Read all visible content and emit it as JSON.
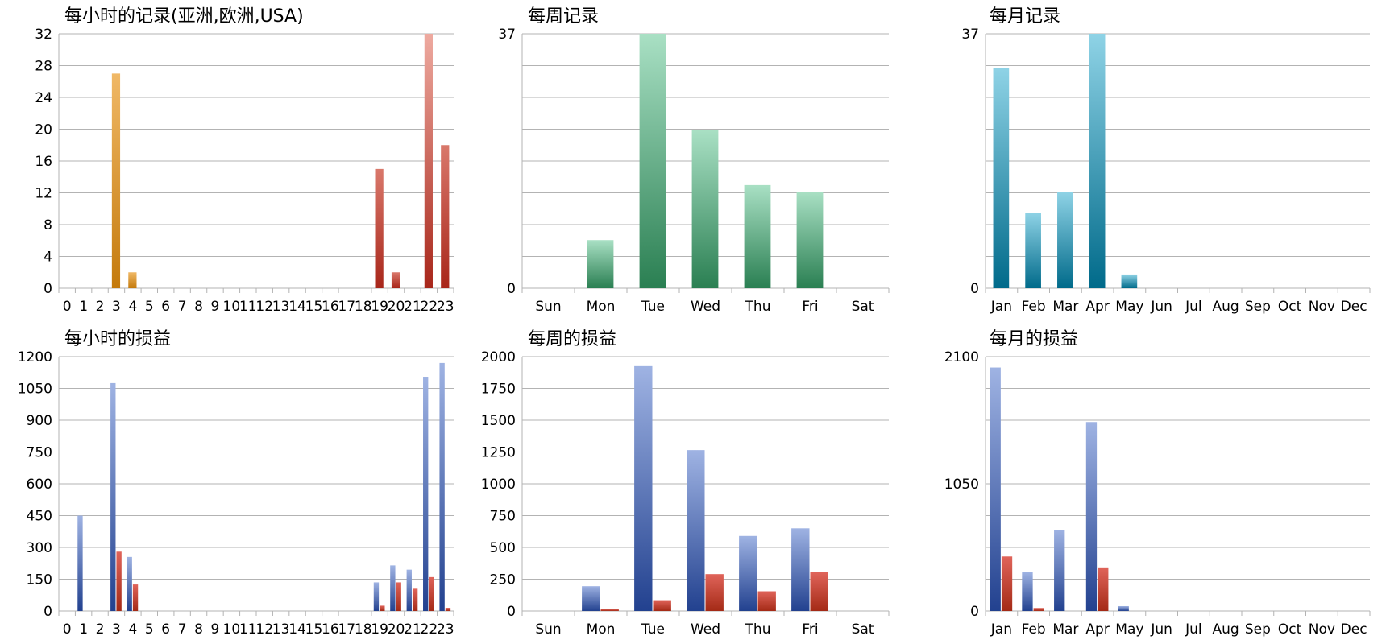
{
  "chart_data": [
    {
      "type": "bar",
      "title": "每小时的记录(亚洲,欧洲,USA)",
      "categories": [
        "0",
        "1",
        "2",
        "3",
        "4",
        "5",
        "6",
        "7",
        "8",
        "9",
        "10",
        "11",
        "12",
        "13",
        "14",
        "15",
        "16",
        "17",
        "18",
        "19",
        "20",
        "21",
        "22",
        "23"
      ],
      "yticks": [
        "0",
        "4",
        "8",
        "12",
        "16",
        "20",
        "24",
        "28",
        "32"
      ],
      "ylim": [
        0,
        32
      ],
      "series": [
        {
          "values": [
            0,
            0,
            0,
            27,
            2,
            0,
            0,
            0,
            0,
            0,
            0,
            0,
            0,
            0,
            0,
            0,
            0,
            0,
            0,
            15,
            2,
            0,
            32,
            18
          ]
        }
      ],
      "bar_colors": [
        "#f0b866",
        "#f0b866",
        "#f0b866",
        "#f0b866",
        "#f0b866",
        "#f0b866",
        "#f0b866",
        "#f0b866",
        "#f0b866",
        "#f0b866",
        "#f0b866",
        "#f0b866",
        "#f0b866",
        "#e08e6a",
        "#e08e6a",
        "#e08e6a",
        "#e08e6a",
        "#e08e6a",
        "#e08e6a",
        "#d9786b",
        "#d9786b",
        "#d9786b",
        "#eeaaa0",
        "#d9786b"
      ],
      "bar_colors_bottom": [
        "#c47a0c",
        "#c47a0c",
        "#c47a0c",
        "#c47a0c",
        "#c47a0c",
        "#c47a0c",
        "#c47a0c",
        "#c47a0c",
        "#c47a0c",
        "#c47a0c",
        "#c47a0c",
        "#c47a0c",
        "#c47a0c",
        "#b5400f",
        "#b5400f",
        "#b5400f",
        "#b5400f",
        "#b5400f",
        "#b5400f",
        "#a8261a",
        "#a8261a",
        "#a8261a",
        "#a8261a",
        "#a8261a"
      ]
    },
    {
      "type": "bar",
      "title": "每周记录",
      "categories": [
        "Sun",
        "Mon",
        "Tue",
        "Wed",
        "Thu",
        "Fri",
        "Sat"
      ],
      "yticks": [
        "0",
        "37"
      ],
      "ylim": [
        0,
        37
      ],
      "minor_divisions": 8,
      "series": [
        {
          "values": [
            0,
            7,
            37,
            23,
            15,
            14,
            0
          ],
          "color_top": "#a9e0c4",
          "color_bottom": "#2a7f52"
        }
      ]
    },
    {
      "type": "bar",
      "title": "每月记录",
      "categories": [
        "Jan",
        "Feb",
        "Mar",
        "Apr",
        "May",
        "Jun",
        "Jul",
        "Aug",
        "Sep",
        "Oct",
        "Nov",
        "Dec"
      ],
      "yticks": [
        "0",
        "37"
      ],
      "ylim": [
        0,
        37
      ],
      "minor_divisions": 8,
      "series": [
        {
          "values": [
            32,
            11,
            14,
            37,
            2,
            0,
            0,
            0,
            0,
            0,
            0,
            0
          ],
          "color_top": "#8fd3e6",
          "color_bottom": "#006a8a"
        }
      ]
    },
    {
      "type": "bar",
      "title": "每小时的损益",
      "categories": [
        "0",
        "1",
        "2",
        "3",
        "4",
        "5",
        "6",
        "7",
        "8",
        "9",
        "10",
        "11",
        "12",
        "13",
        "14",
        "15",
        "16",
        "17",
        "18",
        "19",
        "20",
        "21",
        "22",
        "23"
      ],
      "yticks": [
        "0",
        "150",
        "300",
        "450",
        "600",
        "750",
        "900",
        "1050",
        "1200"
      ],
      "ylim": [
        0,
        1200
      ],
      "series": [
        {
          "values": [
            0,
            450,
            0,
            1075,
            255,
            0,
            0,
            0,
            0,
            0,
            0,
            0,
            0,
            0,
            0,
            0,
            0,
            0,
            0,
            135,
            215,
            195,
            1105,
            1170
          ],
          "color_top": "#9fb3e3",
          "color_bottom": "#22418f"
        },
        {
          "values": [
            0,
            0,
            0,
            280,
            125,
            0,
            0,
            0,
            0,
            0,
            0,
            0,
            0,
            0,
            0,
            0,
            0,
            0,
            0,
            25,
            135,
            105,
            160,
            15
          ],
          "color_top": "#e0645a",
          "color_bottom": "#a42a16"
        }
      ]
    },
    {
      "type": "bar",
      "title": "每周的损益",
      "categories": [
        "Sun",
        "Mon",
        "Tue",
        "Wed",
        "Thu",
        "Fri",
        "Sat"
      ],
      "yticks": [
        "0",
        "250",
        "500",
        "750",
        "1000",
        "1250",
        "1500",
        "1750",
        "2000"
      ],
      "ylim": [
        0,
        2000
      ],
      "series": [
        {
          "values": [
            0,
            195,
            1925,
            1265,
            590,
            650,
            0
          ],
          "color_top": "#9fb3e3",
          "color_bottom": "#22418f"
        },
        {
          "values": [
            0,
            15,
            85,
            290,
            155,
            305,
            0
          ],
          "color_top": "#e0645a",
          "color_bottom": "#a42a16"
        }
      ]
    },
    {
      "type": "bar",
      "title": "每月的损益",
      "categories": [
        "Jan",
        "Feb",
        "Mar",
        "Apr",
        "May",
        "Jun",
        "Jul",
        "Aug",
        "Sep",
        "Oct",
        "Nov",
        "Dec"
      ],
      "yticks": [
        "0",
        "1050",
        "2100"
      ],
      "ylim": [
        0,
        2100
      ],
      "minor_divisions": 8,
      "series": [
        {
          "values": [
            2010,
            320,
            670,
            1560,
            40,
            0,
            0,
            0,
            0,
            0,
            0,
            0
          ],
          "color_top": "#9fb3e3",
          "color_bottom": "#22418f"
        },
        {
          "values": [
            450,
            25,
            0,
            360,
            0,
            0,
            0,
            0,
            0,
            0,
            0,
            0
          ],
          "color_top": "#e0645a",
          "color_bottom": "#a42a16"
        }
      ]
    }
  ]
}
